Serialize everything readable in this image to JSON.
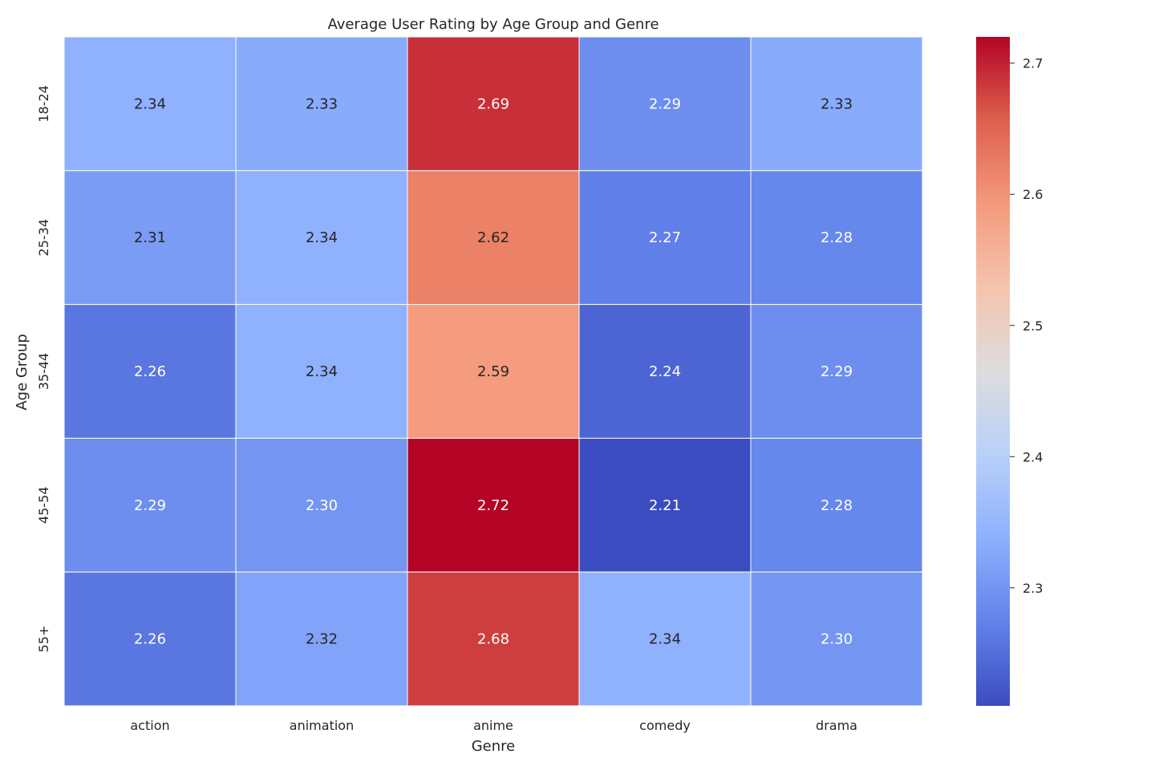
{
  "chart_data": {
    "type": "heatmap",
    "title": "Average User Rating by Age Group and Genre",
    "xlabel": "Genre",
    "ylabel": "Age Group",
    "x_categories": [
      "action",
      "animation",
      "anime",
      "comedy",
      "drama"
    ],
    "y_categories": [
      "18-24",
      "25-34",
      "35-44",
      "45-54",
      "55+"
    ],
    "values": [
      [
        2.34,
        2.33,
        2.69,
        2.29,
        2.33
      ],
      [
        2.31,
        2.34,
        2.62,
        2.27,
        2.28
      ],
      [
        2.26,
        2.34,
        2.59,
        2.24,
        2.29
      ],
      [
        2.29,
        2.3,
        2.72,
        2.21,
        2.28
      ],
      [
        2.26,
        2.32,
        2.68,
        2.34,
        2.3
      ]
    ],
    "value_format": "0.00",
    "colormap": "coolwarm",
    "vmin": 2.21,
    "vmax": 2.72,
    "colorbar_ticks": [
      "2.3",
      "2.4",
      "2.5",
      "2.6",
      "2.7"
    ],
    "grid_line_color": "#ffffff",
    "colorbar": "right"
  }
}
